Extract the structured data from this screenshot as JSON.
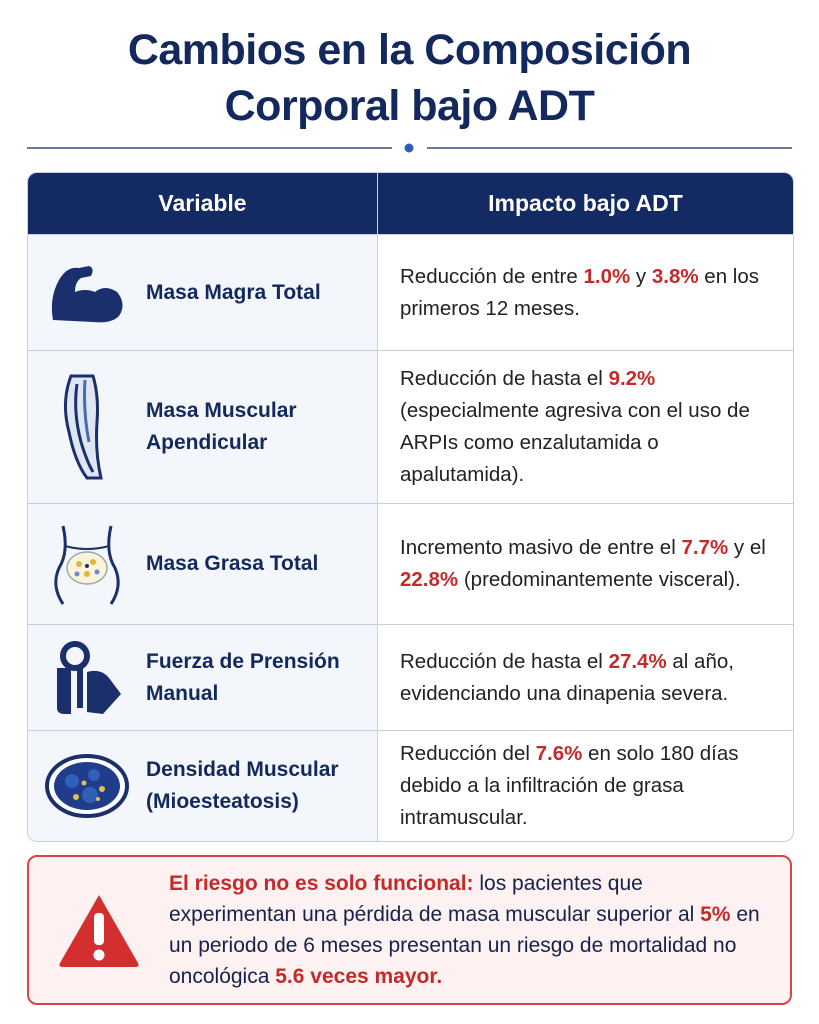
{
  "header": {
    "title_lines": [
      "Cambios en la Composición",
      "Corporal bajo ADT"
    ]
  },
  "table": {
    "columns": [
      "Variable",
      "Impacto bajo ADT"
    ],
    "rows": [
      {
        "variable": "Masa Magra Total",
        "impact": [
          {
            "text": "Reducción de entre "
          },
          {
            "text": "1.0%",
            "em": true
          },
          {
            "text": " y "
          },
          {
            "text": "3.8%",
            "em": true
          },
          {
            "text": " en los primeros 12 meses."
          }
        ]
      },
      {
        "variable": "Masa Muscular Apendicular",
        "impact": [
          {
            "text": "Reducción de hasta el "
          },
          {
            "text": "9.2%",
            "em": true
          },
          {
            "text": " (especialmente agresiva con el uso de ARPIs como enzalutamida o apalutamida)."
          }
        ]
      },
      {
        "variable": "Masa Grasa Total",
        "impact": [
          {
            "text": "Incremento masivo de entre el "
          },
          {
            "text": "7.7%",
            "em": true
          },
          {
            "text": " y el "
          },
          {
            "text": "22.8%",
            "em": true
          },
          {
            "text": " (predominantemente visceral)."
          }
        ]
      },
      {
        "variable": "Fuerza de Prensión Manual",
        "impact": [
          {
            "text": "Reducción de hasta el "
          },
          {
            "text": "27.4%",
            "em": true
          },
          {
            "text": " al año, evidenciando una dinapenia severa."
          }
        ]
      },
      {
        "variable": "Densidad Muscular (Mioesteatosis)",
        "impact": [
          {
            "text": "Reducción del "
          },
          {
            "text": "7.6%",
            "em": true
          },
          {
            "text": " en solo 180 días debido a la infiltración de grasa intramuscular."
          }
        ]
      }
    ]
  },
  "warning": {
    "segments": [
      {
        "text": "El riesgo no es solo funcional:",
        "em": true
      },
      {
        "text": " los pacientes que experimentan una pérdida de masa muscular superior al "
      },
      {
        "text": "5%",
        "em": true
      },
      {
        "text": " en un periodo de 6 meses presentan un riesgo de mortalidad no oncológica "
      },
      {
        "text": "5.6 veces mayor.",
        "em": true
      }
    ]
  }
}
